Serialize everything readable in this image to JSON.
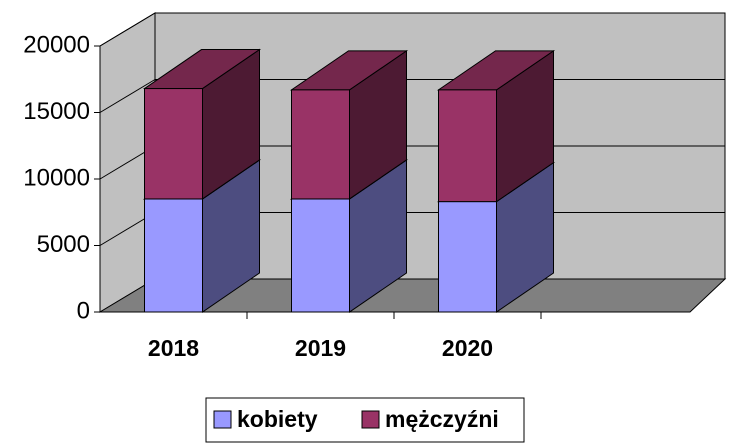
{
  "chart_data": {
    "type": "bar3d_stacked",
    "categories": [
      "2018",
      "2019",
      "2020",
      null
    ],
    "series": [
      {
        "name": "kobiety",
        "color": "#9999ff",
        "side": "#4d4d80",
        "values": [
          8500,
          8500,
          8300,
          null
        ]
      },
      {
        "name": "mężczyźni",
        "color": "#993366",
        "side": "#4d1a33",
        "values": [
          8300,
          8200,
          8400,
          null
        ]
      }
    ],
    "ylim": [
      0,
      20000
    ],
    "yticks": [
      0,
      5000,
      10000,
      15000,
      20000
    ],
    "grid": true,
    "legend": "bottom"
  }
}
